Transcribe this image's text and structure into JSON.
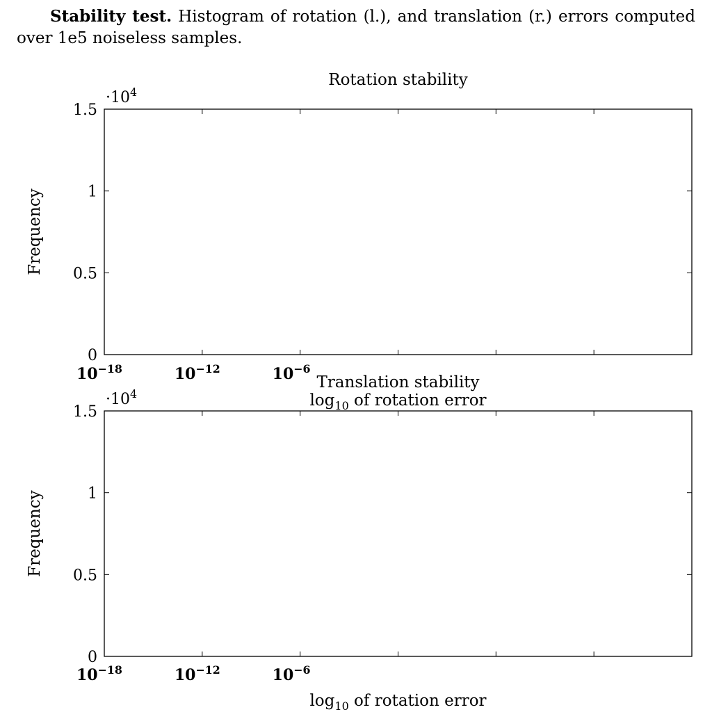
{
  "caption": {
    "bold_label": "Stability test.",
    "text": " Histogram of rotation (l.), and translation (r.) errors computed over 1e5 noiseless samples."
  },
  "chart_data": [
    {
      "type": "bar",
      "title": "Rotation stability",
      "xlabel": "log10 of rotation error",
      "xlabel_base": "log",
      "xlabel_sub": "10",
      "xlabel_rest": " of rotation error",
      "ylabel": "Frequency",
      "y_scale_base": "·10",
      "y_scale_exp": "4",
      "ylim": [
        0,
        1.5
      ],
      "yticks": [
        {
          "value": 0,
          "label": "0"
        },
        {
          "value": 0.5,
          "label": "0.5"
        },
        {
          "value": 1,
          "label": "1"
        },
        {
          "value": 1.5,
          "label": "1.5"
        }
      ],
      "xticks_labeled": [
        {
          "base": "10",
          "exp": "−18"
        },
        {
          "base": "10",
          "exp": "−12"
        },
        {
          "base": "10",
          "exp": "−6"
        }
      ],
      "xtick_count": 7,
      "series": [],
      "grid": false
    },
    {
      "type": "bar",
      "title": "Translation stability",
      "xlabel": "log10 of rotation error",
      "xlabel_base": "log",
      "xlabel_sub": "10",
      "xlabel_rest": " of rotation error",
      "ylabel": "Frequency",
      "y_scale_base": "·10",
      "y_scale_exp": "4",
      "ylim": [
        0,
        1.5
      ],
      "yticks": [
        {
          "value": 0,
          "label": "0"
        },
        {
          "value": 0.5,
          "label": "0.5"
        },
        {
          "value": 1,
          "label": "1"
        },
        {
          "value": 1.5,
          "label": "1.5"
        }
      ],
      "xticks_labeled": [
        {
          "base": "10",
          "exp": "−18"
        },
        {
          "base": "10",
          "exp": "−12"
        },
        {
          "base": "10",
          "exp": "−6"
        }
      ],
      "xtick_count": 7,
      "series": [],
      "grid": false
    }
  ]
}
